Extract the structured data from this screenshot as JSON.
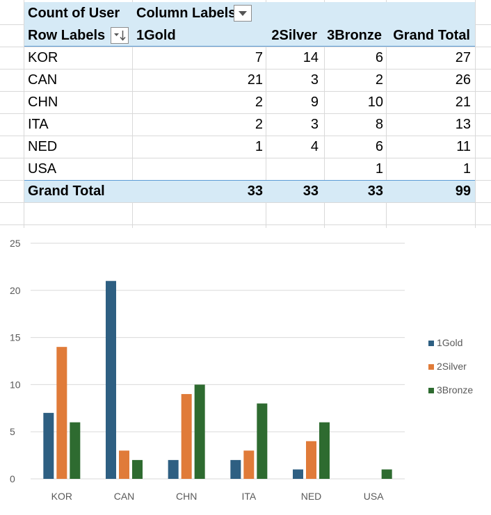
{
  "pivot": {
    "corner_label": "Count of User",
    "column_labels": "Column Labels",
    "row_labels": "Row Labels",
    "columns": [
      "1Gold",
      "2Silver",
      "3Bronze",
      "Grand Total"
    ],
    "rows": [
      {
        "label": "KOR",
        "values": [
          "7",
          "14",
          "6",
          "27"
        ]
      },
      {
        "label": "CAN",
        "values": [
          "21",
          "3",
          "2",
          "26"
        ]
      },
      {
        "label": "CHN",
        "values": [
          "2",
          "9",
          "10",
          "21"
        ]
      },
      {
        "label": "ITA",
        "values": [
          "2",
          "3",
          "8",
          "13"
        ]
      },
      {
        "label": "NED",
        "values": [
          "1",
          "4",
          "6",
          "11"
        ]
      },
      {
        "label": "USA",
        "values": [
          "",
          "",
          "1",
          "1"
        ]
      }
    ],
    "total": {
      "label": "Grand Total",
      "values": [
        "33",
        "33",
        "33",
        "99"
      ]
    }
  },
  "chart_data": {
    "type": "bar",
    "categories": [
      "KOR",
      "CAN",
      "CHN",
      "ITA",
      "NED",
      "USA"
    ],
    "series": [
      {
        "name": "1Gold",
        "values": [
          7,
          21,
          2,
          2,
          1,
          0
        ],
        "color": "#2e5f82"
      },
      {
        "name": "2Silver",
        "values": [
          14,
          3,
          9,
          3,
          4,
          0
        ],
        "color": "#e07b39"
      },
      {
        "name": "3Bronze",
        "values": [
          6,
          2,
          10,
          8,
          6,
          1
        ],
        "color": "#2e6b30"
      }
    ],
    "ylim": [
      0,
      25
    ],
    "yticks": [
      0,
      5,
      10,
      15,
      20,
      25
    ],
    "grid": true,
    "legend": "right"
  }
}
